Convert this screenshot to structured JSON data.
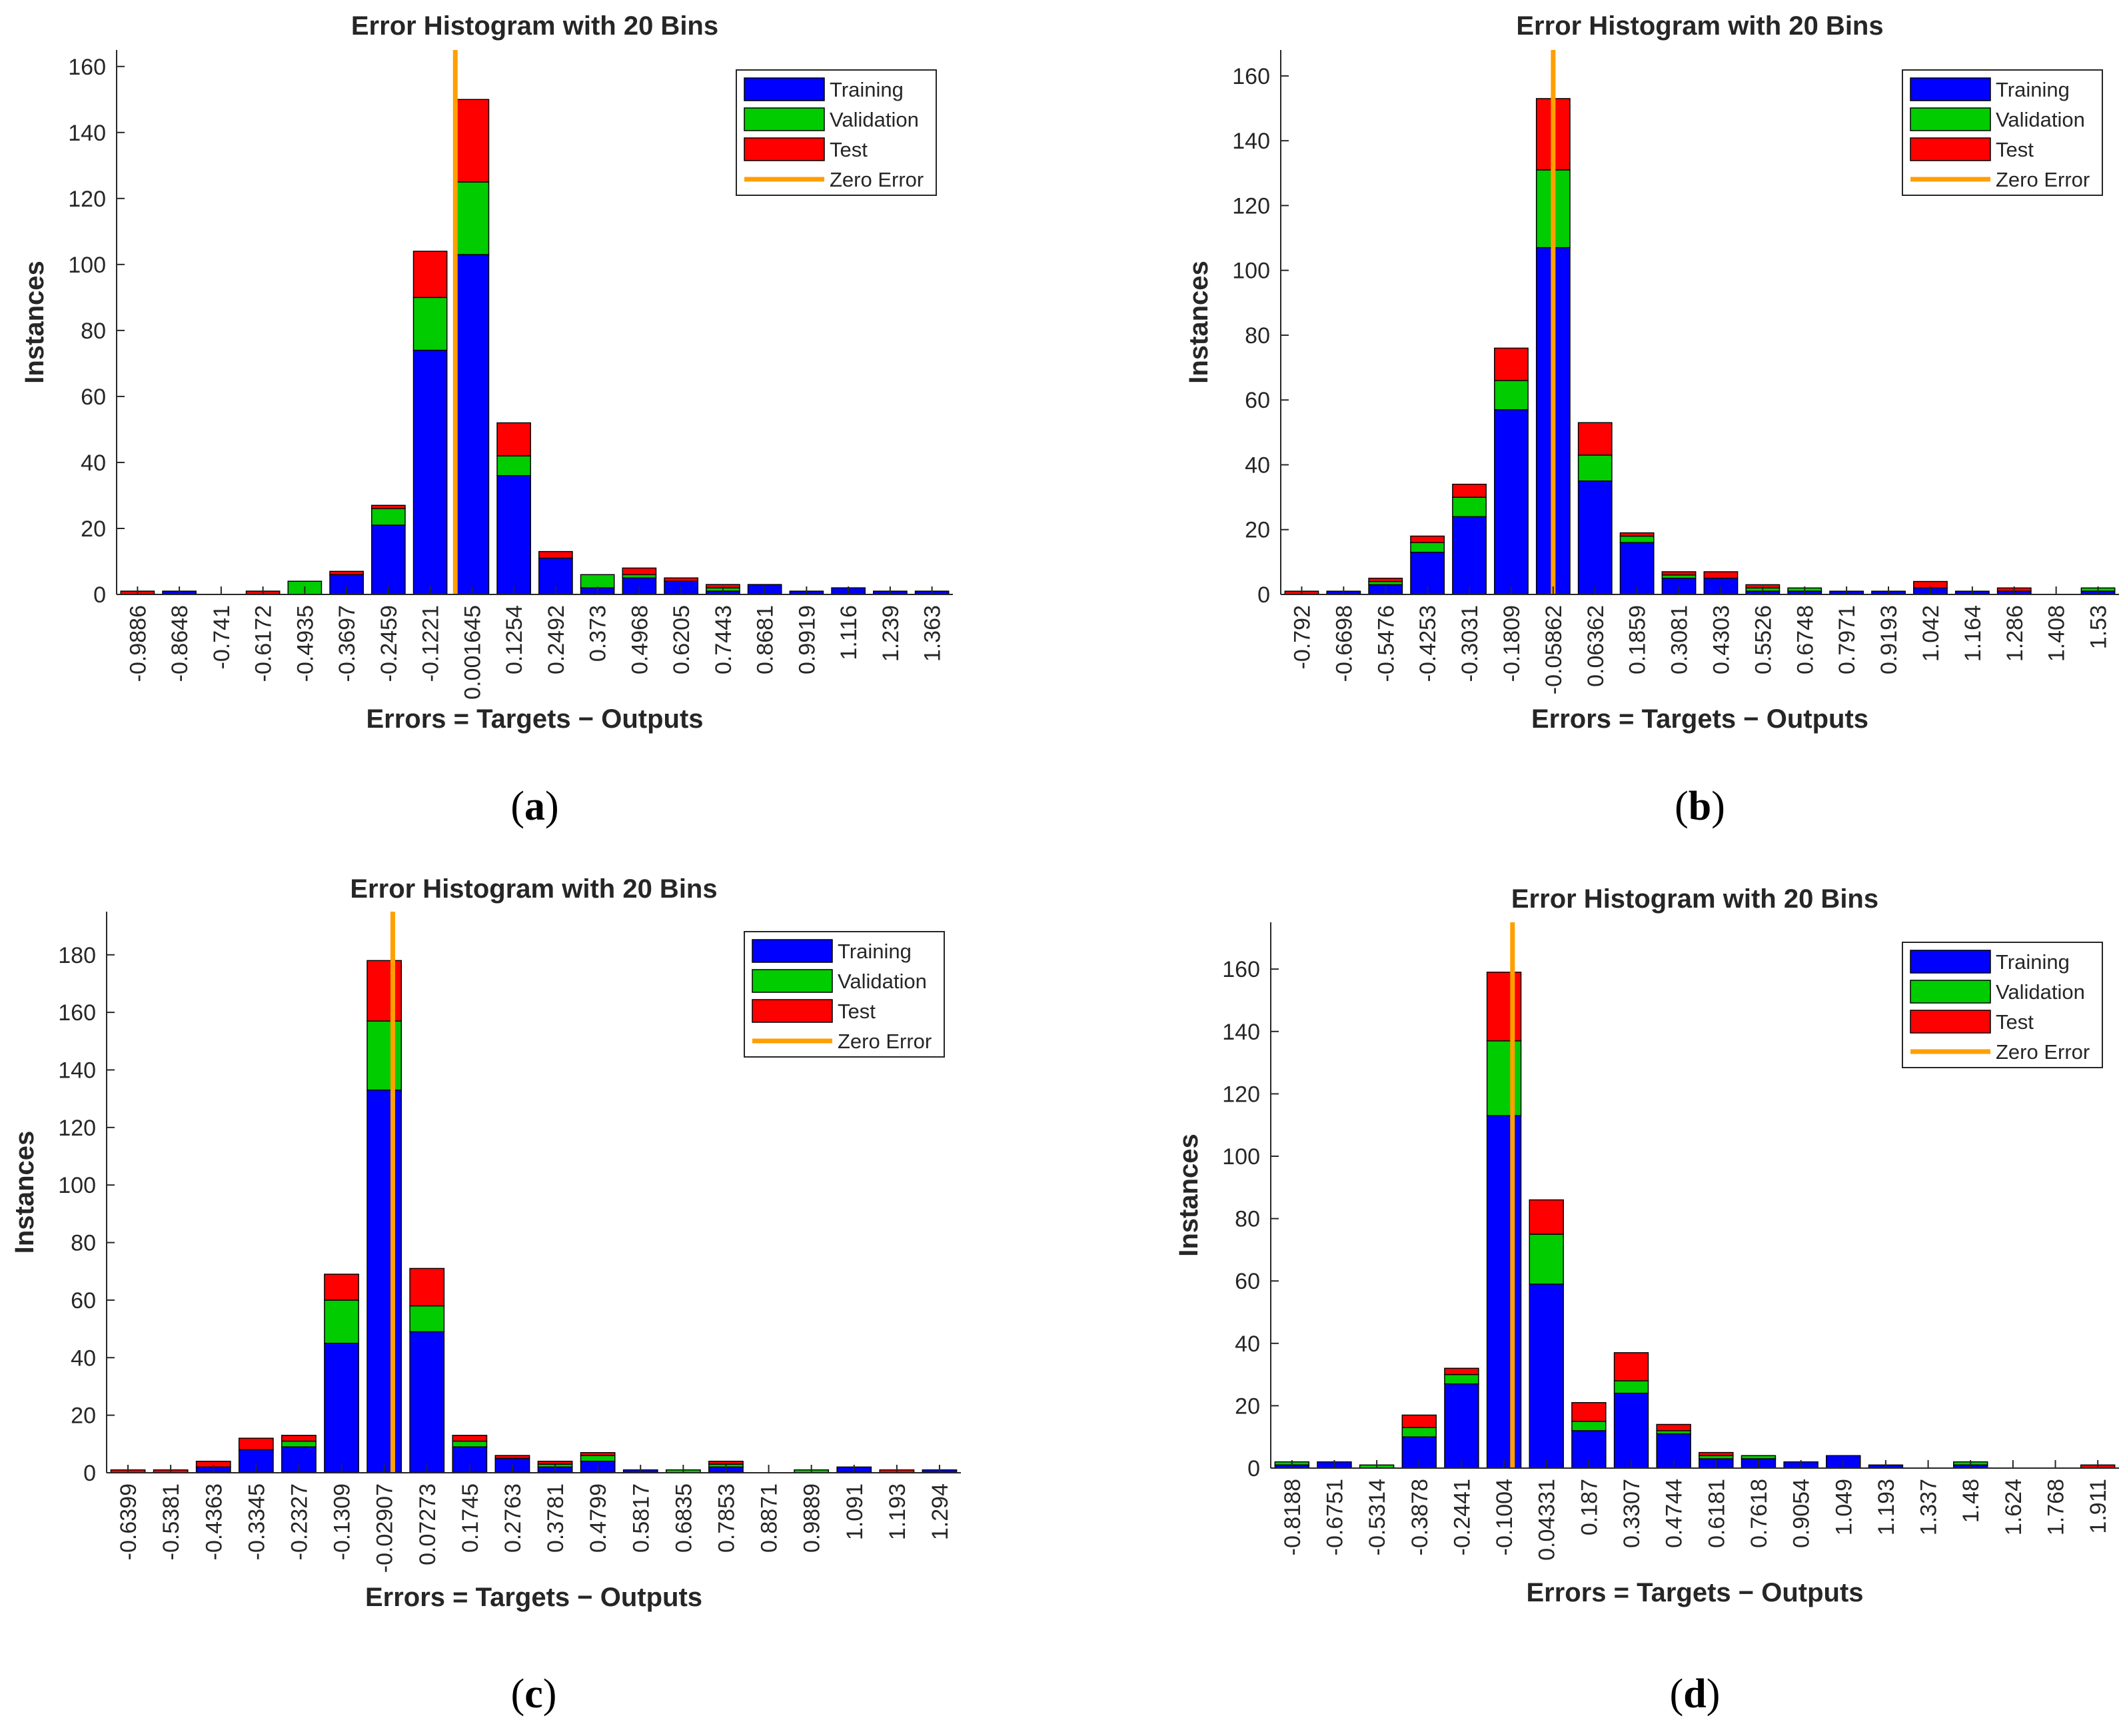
{
  "colors": {
    "training": "#0000ff",
    "validation": "#00cc00",
    "test": "#ff0000",
    "zero_error": "#ff9f00",
    "axis": "#262626"
  },
  "chart_data": [
    {
      "type": "bar",
      "stacked": true,
      "caption": "a",
      "title": "Error Histogram with 20 Bins",
      "xlabel": "Errors = Targets − Outputs",
      "ylabel": "Instances",
      "ylim": [
        0,
        165
      ],
      "yticks": [
        0,
        20,
        40,
        60,
        80,
        100,
        120,
        140,
        160
      ],
      "categories": [
        "-0.9886",
        "-0.8648",
        "-0.741",
        "-0.6172",
        "-0.4935",
        "-0.3697",
        "-0.2459",
        "-0.1221",
        "0.001645",
        "0.1254",
        "0.2492",
        "0.373",
        "0.4968",
        "0.6205",
        "0.7443",
        "0.8681",
        "0.9919",
        "1.116",
        "1.239",
        "1.363"
      ],
      "series": [
        {
          "name": "Training",
          "values": [
            0,
            1,
            0,
            0,
            0,
            6,
            21,
            74,
            103,
            36,
            11,
            2,
            5,
            4,
            1,
            3,
            1,
            2,
            1,
            1
          ]
        },
        {
          "name": "Validation",
          "values": [
            0,
            0,
            0,
            0,
            4,
            0,
            5,
            16,
            22,
            6,
            0,
            4,
            1,
            0,
            1,
            0,
            0,
            0,
            0,
            0
          ]
        },
        {
          "name": "Test",
          "values": [
            1,
            0,
            0,
            1,
            0,
            1,
            1,
            14,
            25,
            10,
            2,
            0,
            2,
            1,
            1,
            0,
            0,
            0,
            0,
            0
          ]
        }
      ],
      "zero_error_position": 8.1,
      "legend": [
        "Training",
        "Validation",
        "Test",
        "Zero Error"
      ],
      "legend_placement": "top-right"
    },
    {
      "type": "bar",
      "stacked": true,
      "caption": "b",
      "title": "Error Histogram with 20 Bins",
      "xlabel": "Errors = Targets − Outputs",
      "ylabel": "Instances",
      "ylim": [
        0,
        168
      ],
      "yticks": [
        0,
        20,
        40,
        60,
        80,
        100,
        120,
        140,
        160
      ],
      "categories": [
        "-0.792",
        "-0.6698",
        "-0.5476",
        "-0.4253",
        "-0.3031",
        "-0.1809",
        "-0.05862",
        "0.06362",
        "0.1859",
        "0.3081",
        "0.4303",
        "0.5526",
        "0.6748",
        "0.7971",
        "0.9193",
        "1.042",
        "1.164",
        "1.286",
        "1.408",
        "1.53"
      ],
      "series": [
        {
          "name": "Training",
          "values": [
            0,
            1,
            3,
            13,
            24,
            57,
            107,
            35,
            16,
            5,
            5,
            1,
            1,
            1,
            1,
            2,
            1,
            1,
            0,
            1
          ]
        },
        {
          "name": "Validation",
          "values": [
            0,
            0,
            1,
            3,
            6,
            9,
            24,
            8,
            2,
            1,
            0,
            1,
            1,
            0,
            0,
            0,
            0,
            0,
            0,
            1
          ]
        },
        {
          "name": "Test",
          "values": [
            1,
            0,
            1,
            2,
            4,
            10,
            22,
            10,
            1,
            1,
            2,
            1,
            0,
            0,
            0,
            2,
            0,
            1,
            0,
            0
          ]
        }
      ],
      "zero_error_position": 6.5,
      "legend": [
        "Training",
        "Validation",
        "Test",
        "Zero Error"
      ],
      "legend_placement": "top-right"
    },
    {
      "type": "bar",
      "stacked": true,
      "caption": "c",
      "title": "Error Histogram with 20 Bins",
      "xlabel": "Errors = Targets − Outputs",
      "ylabel": "Instances",
      "ylim": [
        0,
        195
      ],
      "yticks": [
        0,
        20,
        40,
        60,
        80,
        100,
        120,
        140,
        160,
        180
      ],
      "categories": [
        "-0.6399",
        "-0.5381",
        "-0.4363",
        "-0.3345",
        "-0.2327",
        "-0.1309",
        "-0.02907",
        "0.07273",
        "0.1745",
        "0.2763",
        "0.3781",
        "0.4799",
        "0.5817",
        "0.6835",
        "0.7853",
        "0.8871",
        "0.9889",
        "1.091",
        "1.193",
        "1.294"
      ],
      "series": [
        {
          "name": "Training",
          "values": [
            0,
            0,
            2,
            8,
            9,
            45,
            133,
            49,
            9,
            5,
            2,
            4,
            1,
            0,
            2,
            0,
            0,
            2,
            0,
            1
          ]
        },
        {
          "name": "Validation",
          "values": [
            0,
            0,
            0,
            0,
            2,
            15,
            24,
            9,
            2,
            0,
            1,
            2,
            0,
            1,
            1,
            0,
            1,
            0,
            0,
            0
          ]
        },
        {
          "name": "Test",
          "values": [
            1,
            1,
            2,
            4,
            2,
            9,
            21,
            13,
            2,
            1,
            1,
            1,
            0,
            0,
            1,
            0,
            0,
            0,
            1,
            0
          ]
        }
      ],
      "zero_error_position": 6.7,
      "legend": [
        "Training",
        "Validation",
        "Test",
        "Zero Error"
      ],
      "legend_placement": "top-right"
    },
    {
      "type": "bar",
      "stacked": true,
      "caption": "d",
      "title": "Error Histogram with 20 Bins",
      "xlabel": "Errors = Targets − Outputs",
      "ylabel": "Instances",
      "ylim": [
        0,
        175
      ],
      "yticks": [
        0,
        20,
        40,
        60,
        80,
        100,
        120,
        140,
        160
      ],
      "categories": [
        "-0.8188",
        "-0.6751",
        "-0.5314",
        "-0.3878",
        "-0.2441",
        "-0.1004",
        "0.04331",
        "0.187",
        "0.3307",
        "0.4744",
        "0.6181",
        "0.7618",
        "0.9054",
        "1.049",
        "1.193",
        "1.337",
        "1.48",
        "1.624",
        "1.768",
        "1.911"
      ],
      "series": [
        {
          "name": "Training",
          "values": [
            1,
            2,
            0,
            10,
            27,
            113,
            59,
            12,
            24,
            11,
            3,
            3,
            2,
            4,
            1,
            0,
            1,
            0,
            0,
            0
          ]
        },
        {
          "name": "Validation",
          "values": [
            1,
            0,
            1,
            3,
            3,
            24,
            16,
            3,
            4,
            1,
            1,
            1,
            0,
            0,
            0,
            0,
            1,
            0,
            0,
            0
          ]
        },
        {
          "name": "Test",
          "values": [
            0,
            0,
            0,
            4,
            2,
            22,
            11,
            6,
            9,
            2,
            1,
            0,
            0,
            0,
            0,
            0,
            0,
            0,
            0,
            1
          ]
        }
      ],
      "zero_error_position": 5.7,
      "legend": [
        "Training",
        "Validation",
        "Test",
        "Zero Error"
      ],
      "legend_placement": "top-right"
    }
  ]
}
